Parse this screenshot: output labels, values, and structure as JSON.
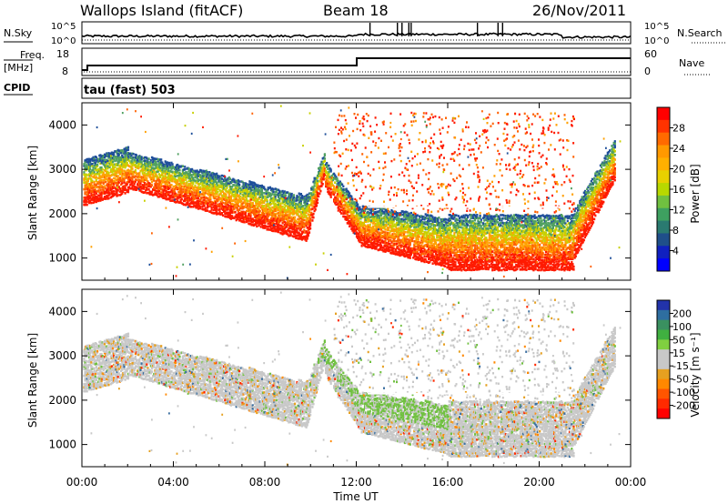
{
  "header": {
    "title": "Wallops Island (fitACF)",
    "beam": "Beam 18",
    "date": "26/Nov/2011"
  },
  "top_panels": {
    "nsky_label": "N.Sky",
    "nsearch_label": "N.Search",
    "freq_label_1": "Freq.",
    "freq_label_2": "[MHz]",
    "nave_label": "Nave",
    "cpid_label": "CPID",
    "cpid_value": "tau (fast) 503",
    "left_ticks_noise": [
      "10^5",
      "10^0"
    ],
    "right_ticks_noise": [
      "10^5",
      "10^0"
    ],
    "left_ticks_freq": [
      "18",
      "8"
    ],
    "right_ticks_freq": [
      "60",
      "0"
    ]
  },
  "chart_data": [
    {
      "type": "heatmap",
      "name": "power",
      "ylabel": "Slant Range [km]",
      "yticks": [
        "4000",
        "3000",
        "2000",
        "1000"
      ],
      "ylim": [
        500,
        4500
      ],
      "xlim": [
        0,
        24
      ],
      "colorbar_label": "Power [dB]",
      "colorbar_ticks": [
        "28",
        "24",
        "20",
        "16",
        "12",
        "8",
        "4"
      ],
      "colorbar_colors": [
        "#ff0000",
        "#ff3300",
        "#ff6a00",
        "#ff9900",
        "#ffb000",
        "#e8d000",
        "#b8d800",
        "#70c040",
        "#3ea060",
        "#2a7a70",
        "#1f4f8a",
        "#1020c0",
        "#0000ff"
      ]
    },
    {
      "type": "heatmap",
      "name": "velocity",
      "ylabel": "Slant Range [km]",
      "yticks": [
        "4000",
        "3000",
        "2000",
        "1000"
      ],
      "ylim": [
        500,
        4500
      ],
      "xlim": [
        0,
        24
      ],
      "colorbar_label": "Velocity [m s⁻¹]",
      "colorbar_ticks": [
        "200",
        "100",
        "50",
        "15",
        "-15",
        "-50",
        "-100",
        "-200"
      ],
      "colorbar_colors": [
        "#2233aa",
        "#2e6ea0",
        "#3a9060",
        "#40b040",
        "#80d040",
        "#c8c8c8",
        "#c8c8c8",
        "#e6a020",
        "#ff8800",
        "#ff5500",
        "#ff2a00",
        "#ff0000"
      ]
    }
  ],
  "xaxis": {
    "label": "Time UT",
    "ticks": [
      "00:00",
      "04:00",
      "08:00",
      "12:00",
      "16:00",
      "20:00",
      "00:00"
    ]
  }
}
